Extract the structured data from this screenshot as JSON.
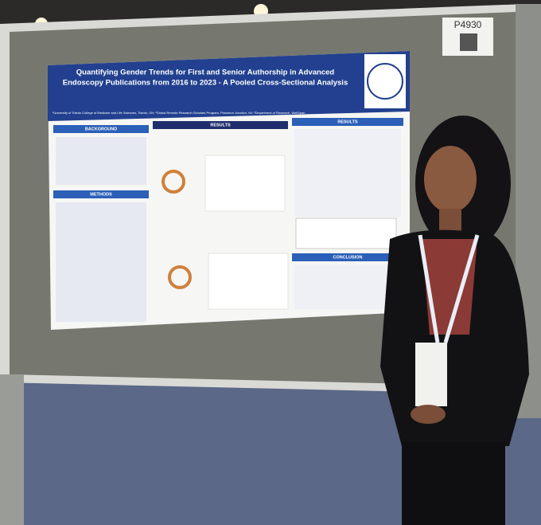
{
  "board_id": "P4930",
  "poster": {
    "title_lines": [
      "Quantifying Gender Trends for First and Senior Authorship in Advanced",
      "Endoscopy Publications from 2016 to 2023 - A Pooled Cross-Sectional Analysis"
    ],
    "affiliations": "¹University of Toledo College of Medicine and Life Sciences, Toledo, OH; ²Global Remote Research Scholars Program, Princeton Junction, NJ; ³Department of Research, WellSpan",
    "sections": {
      "background": "BACKGROUND",
      "methods": "METHODS",
      "results_left": "RESULTS",
      "results_right": "RESULTS",
      "conclusion": "CONCLUSION"
    }
  }
}
